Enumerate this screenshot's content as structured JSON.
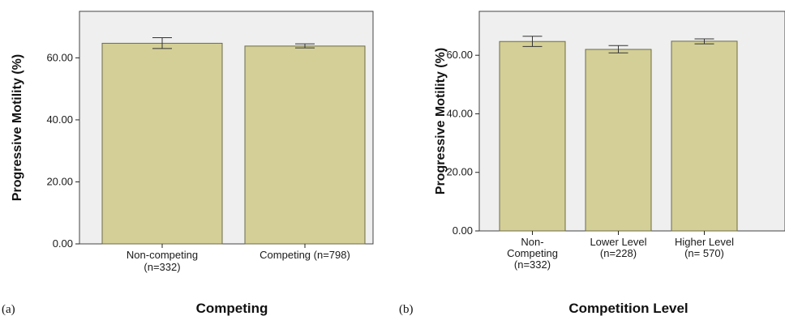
{
  "chart_data": [
    {
      "type": "bar",
      "panel_label": "(a)",
      "xlabel": "Competing",
      "ylabel": "Progressive Motility (%)",
      "ylim": [
        0,
        75
      ],
      "yticks": [
        "0.00",
        "20.00",
        "40.00",
        "60.00"
      ],
      "categories": [
        [
          "Non-competing",
          "(n=332)"
        ],
        [
          "Competing (n=798)"
        ]
      ],
      "values": [
        64.7,
        63.8
      ],
      "error_low": [
        63.0,
        63.2
      ],
      "error_high": [
        66.5,
        64.5
      ],
      "colors": {
        "bar": "#d4cf96",
        "bar_border": "#6b6b4a",
        "plot_bg": "#efefef"
      }
    },
    {
      "type": "bar",
      "panel_label": "(b)",
      "xlabel": "Competition Level",
      "ylabel": "Progressive Motility (%)",
      "ylim": [
        0,
        75
      ],
      "yticks": [
        "0.00",
        "20.00",
        "40.00",
        "60.00"
      ],
      "categories": [
        [
          "Non-",
          "Competing",
          "(n=332)"
        ],
        [
          "Lower Level",
          "(n=228)"
        ],
        [
          "Higher Level",
          "(n= 570)"
        ]
      ],
      "values": [
        64.7,
        62.0,
        64.8
      ],
      "error_low": [
        63.0,
        60.8,
        63.9
      ],
      "error_high": [
        66.5,
        63.3,
        65.6
      ],
      "colors": {
        "bar": "#d4cf96",
        "bar_border": "#6b6b4a",
        "plot_bg": "#efefef"
      }
    }
  ]
}
